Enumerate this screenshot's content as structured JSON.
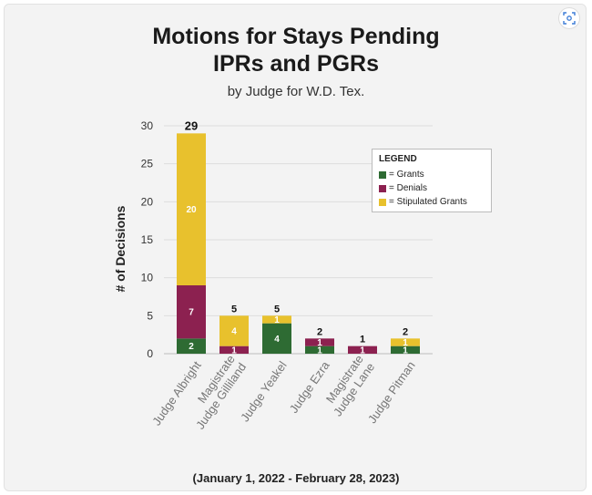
{
  "page": {
    "title_line1": "Motions for Stays Pending",
    "title_line2": "IPRs and PGRs",
    "subtitle": "by Judge for W.D. Tex.",
    "footer": "(January 1, 2022 - February 28, 2023)"
  },
  "legend": {
    "title": "LEGEND",
    "items": [
      {
        "label": "= Grants",
        "color": "#2e6b33"
      },
      {
        "label": "= Denials",
        "color": "#8c2150"
      },
      {
        "label": "= Stipulated Grants",
        "color": "#e8c12d"
      }
    ]
  },
  "chart_data": {
    "type": "bar",
    "stacked": true,
    "ylabel": "#  of Decisions",
    "ylim": [
      0,
      30
    ],
    "yticks": [
      0,
      5,
      10,
      15,
      20,
      25,
      30
    ],
    "grid": true,
    "legend_position": "top-right",
    "categories": [
      [
        "Judge Albright"
      ],
      [
        "Magistrate",
        "Judge Gilliland"
      ],
      [
        "Judge Yeakel"
      ],
      [
        "Judge Ezra"
      ],
      [
        "Magistrate",
        "Judge Lane"
      ],
      [
        "Judge Pitman"
      ]
    ],
    "series": [
      {
        "name": "Grants",
        "color": "#2e6b33",
        "values": [
          2,
          0,
          4,
          1,
          0,
          1
        ],
        "labels": [
          "2",
          "",
          "4",
          "1",
          "",
          "1"
        ]
      },
      {
        "name": "Denials",
        "color": "#8c2150",
        "values": [
          7,
          1,
          0,
          1,
          1,
          0
        ],
        "labels": [
          "7",
          "1",
          "",
          "1",
          "1",
          ""
        ]
      },
      {
        "name": "Stipulated Grants",
        "color": "#e8c12d",
        "values": [
          20,
          4,
          1,
          0,
          0,
          1
        ],
        "labels": [
          "20",
          "4",
          "1",
          "",
          "",
          "1"
        ]
      }
    ],
    "totals": [
      29,
      5,
      5,
      2,
      1,
      2
    ]
  }
}
